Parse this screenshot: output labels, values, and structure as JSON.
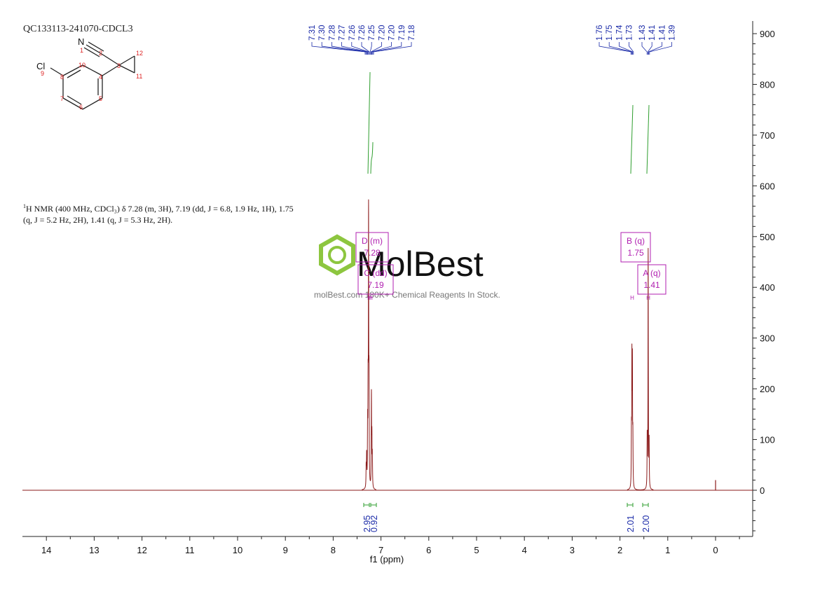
{
  "sample_id": "QC133113-241070-CDCL3",
  "description": {
    "line1_prefix": "1",
    "line1": "H NMR (400 MHz, CDCl₃) δ 7.28 (m, 3H), 7.19 (dd, J = 6.8, 1.9 Hz, 1H), 1.75",
    "line2": "(q, J = 5.2 Hz, 2H), 1.41 (q, J = 5.3 Hz, 2H)."
  },
  "molecule": {
    "atoms": [
      "N",
      "Cl"
    ],
    "atom_numbers": [
      "1",
      "2",
      "3",
      "4",
      "5",
      "6",
      "7",
      "8",
      "9",
      "10",
      "11",
      "12"
    ]
  },
  "watermark": {
    "brand": "MolBest",
    "tagline": "molBest.com 180K+ Chemical Reagents In Stock.",
    "color": "#8dc63f"
  },
  "chart_data": {
    "type": "line",
    "xlabel": "f1 (ppm)",
    "xlim": [
      14.5,
      -0.7
    ],
    "ylim": [
      -90,
      930
    ],
    "x_ticks": [
      "14",
      "13",
      "12",
      "11",
      "10",
      "9",
      "8",
      "7",
      "6",
      "5",
      "4",
      "3",
      "2",
      "1",
      "0"
    ],
    "y_ticks": [
      "900",
      "800",
      "700",
      "600",
      "500",
      "400",
      "300",
      "200",
      "100",
      "0"
    ],
    "spectrum_color": "#8b1a1a",
    "peak_label_color": "#1a2aa8",
    "integral_color": "#2e9e2e",
    "multiplet_color": "#b01fb0",
    "peaks": [
      {
        "x": 7.31,
        "y": 40
      },
      {
        "x": 7.3,
        "y": 60
      },
      {
        "x": 7.28,
        "y": 110
      },
      {
        "x": 7.27,
        "y": 160
      },
      {
        "x": 7.26,
        "y": 290
      },
      {
        "x": 7.26,
        "y": 230
      },
      {
        "x": 7.25,
        "y": 180
      },
      {
        "x": 7.2,
        "y": 80
      },
      {
        "x": 7.2,
        "y": 100
      },
      {
        "x": 7.19,
        "y": 90
      },
      {
        "x": 7.18,
        "y": 60
      },
      {
        "x": 1.76,
        "y": 100
      },
      {
        "x": 1.75,
        "y": 240
      },
      {
        "x": 1.74,
        "y": 230
      },
      {
        "x": 1.73,
        "y": 90
      },
      {
        "x": 1.43,
        "y": 100
      },
      {
        "x": 1.41,
        "y": 240
      },
      {
        "x": 1.41,
        "y": 230
      },
      {
        "x": 1.39,
        "y": 90
      },
      {
        "x": 0.0,
        "y": 20
      }
    ],
    "peak_label_groups": [
      {
        "labels": [
          "7.31",
          "7.30",
          "7.28",
          "7.27",
          "7.26",
          "7.26",
          "7.25",
          "7.20",
          "7.20",
          "7.19",
          "7.18"
        ]
      },
      {
        "labels": [
          "1.76",
          "1.75",
          "1.74",
          "1.73"
        ]
      },
      {
        "labels": [
          "1.43",
          "1.41",
          "1.41",
          "1.39"
        ]
      }
    ],
    "integrals": [
      {
        "from": 7.32,
        "to": 7.23,
        "value": "2.95"
      },
      {
        "from": 7.22,
        "to": 7.16,
        "value": "0.92"
      },
      {
        "from": 1.79,
        "to": 1.71,
        "value": "2.01"
      },
      {
        "from": 1.46,
        "to": 1.37,
        "value": "2.00"
      }
    ],
    "multiplets": [
      {
        "letter": "D (m)",
        "shift": "7.28",
        "center": 7.28
      },
      {
        "letter": "C (dd)",
        "shift": "7.19",
        "center": 7.19
      },
      {
        "letter": "B (q)",
        "shift": "1.75",
        "center": 1.75
      },
      {
        "letter": "A (q)",
        "shift": "1.41",
        "center": 1.41
      }
    ]
  }
}
